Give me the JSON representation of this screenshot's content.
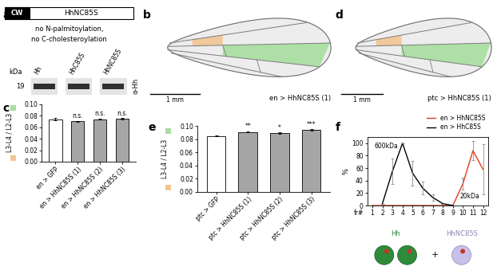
{
  "panel_labels": [
    "a",
    "b",
    "c",
    "d",
    "e",
    "f"
  ],
  "panel_a": {
    "construct": {
      "domain": "CW",
      "name": "HhNC85S"
    },
    "notes": [
      "no N-palmitoylation,",
      "no C-cholesteroylation"
    ],
    "blot": {
      "unit": "kDa",
      "marker": 19,
      "lanes": [
        "Hh",
        "HhC85S",
        "HhNC85S"
      ],
      "antibody": "α-Hh"
    }
  },
  "panel_b": {
    "label": "en > HhNC85S (1)",
    "scale_bar": "1 mm"
  },
  "panel_d": {
    "label": "ptc > HhNC85S (1)",
    "scale_bar": "1 mm"
  },
  "chart_data": [
    {
      "type": "bar",
      "ylabel": "L3-L4 / L2-L3",
      "categories": [
        "en > GFP",
        "en > HhNC85S (1)",
        "en > HhNC85S (2)",
        "en > HhNC85S (3)"
      ],
      "values": [
        0.074,
        0.07,
        0.074,
        0.075
      ],
      "errors": [
        0.0015,
        0.001,
        0.001,
        0.001
      ],
      "colors": [
        "#ffffff",
        "#a6a6a6",
        "#a6a6a6",
        "#a6a6a6"
      ],
      "annotations": [
        null,
        "n.s.",
        "n.s.",
        "n.s."
      ],
      "ylim": [
        0,
        0.1
      ],
      "yticks": [
        {
          "value": 0,
          "label": "0.00"
        },
        {
          "value": 0.02,
          "label": "0.02"
        },
        {
          "value": 0.04,
          "label": "0.04"
        },
        {
          "value": 0.06,
          "label": "0.06"
        },
        {
          "value": 0.08,
          "label": "0.08"
        },
        {
          "value": 0.1,
          "label": "0.10"
        }
      ]
    },
    {
      "type": "bar",
      "ylabel": "L3-L4 / L2-L3",
      "categories": [
        "ptc > GFP",
        "ptc > HhNC85S (1)",
        "ptc > HhNC85S (2)",
        "ptc > HhNC85S (3)"
      ],
      "values": [
        0.085,
        0.091,
        0.089,
        0.094
      ],
      "errors": [
        0.001,
        0.001,
        0.001,
        0.001
      ],
      "colors": [
        "#ffffff",
        "#a6a6a6",
        "#a6a6a6",
        "#a6a6a6"
      ],
      "annotations": [
        null,
        "**",
        "*",
        "***"
      ],
      "ylim": [
        0,
        0.1
      ],
      "yticks": [
        {
          "value": 0,
          "label": "0.00"
        },
        {
          "value": 0.02,
          "label": "0.02"
        },
        {
          "value": 0.04,
          "label": "0.04"
        },
        {
          "value": 0.06,
          "label": "0.06"
        },
        {
          "value": 0.08,
          "label": "0.08"
        },
        {
          "value": 0.1,
          "label": "0.10"
        }
      ]
    },
    {
      "type": "line",
      "ylabel": "%",
      "xlabel": "fr#",
      "x": [
        1,
        2,
        3,
        4,
        5,
        6,
        7,
        8,
        9,
        10,
        11,
        12
      ],
      "series": [
        {
          "name": "en > HhNC85S",
          "color": "#e8381f",
          "values": [
            0,
            0,
            0,
            0,
            0,
            0,
            0,
            0,
            0,
            35,
            88,
            58
          ],
          "errors": [
            0,
            0,
            0,
            0,
            0,
            0,
            0,
            0,
            0,
            10,
            15,
            40
          ]
        },
        {
          "name": "en > HhC85S",
          "color": "#000000",
          "values": [
            null,
            3,
            55,
            100,
            52,
            28,
            13,
            3,
            0,
            null,
            null,
            null
          ],
          "errors": [
            null,
            0,
            20,
            0,
            20,
            10,
            5,
            0,
            0,
            null,
            null,
            null
          ]
        }
      ],
      "annotations": [
        "20kDa",
        "600kDa"
      ],
      "xlim": [
        0.5,
        12.5
      ],
      "ylim": [
        0,
        110
      ],
      "xticks": [
        1,
        2,
        3,
        4,
        5,
        6,
        7,
        8,
        9,
        10,
        11,
        12
      ],
      "yticks": [
        0,
        20,
        40,
        60,
        80,
        100
      ],
      "legend": "upper right"
    }
  ],
  "structures": {
    "left": "Hh",
    "plus": "+",
    "right": "HhNC85S"
  }
}
